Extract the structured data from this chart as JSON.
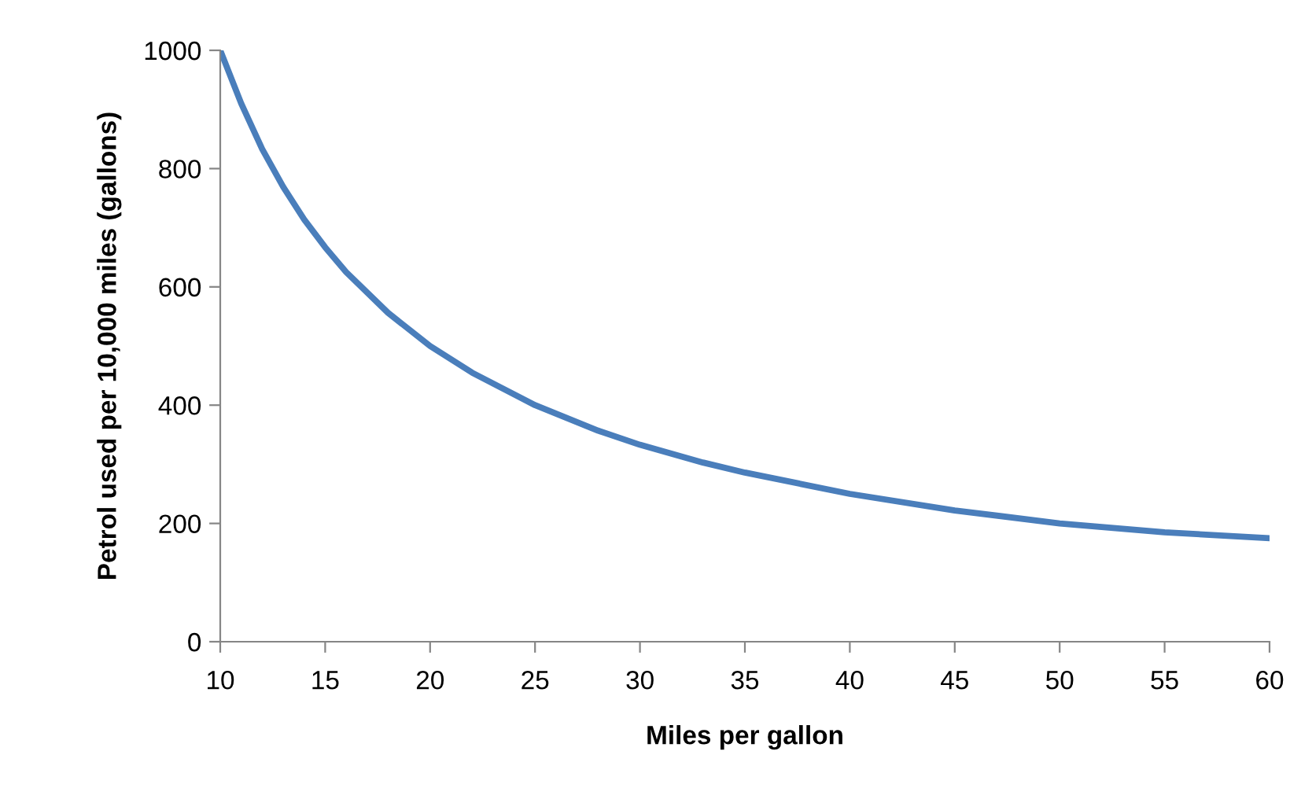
{
  "chart_data": {
    "type": "line",
    "xlabel": "Miles per gallon",
    "ylabel": "Petrol used per 10,000 miles (gallons)",
    "x": [
      10,
      11,
      12,
      13,
      14,
      15,
      16,
      18,
      20,
      22,
      25,
      28,
      30,
      33,
      35,
      40,
      45,
      50,
      55,
      60
    ],
    "series": [
      {
        "color": "#4a7ebb",
        "values": [
          1000,
          910,
          833,
          769,
          714,
          667,
          625,
          556,
          500,
          455,
          400,
          357,
          333,
          303,
          286,
          250,
          222,
          200,
          185,
          175
        ]
      }
    ],
    "xlim": [
      10,
      60
    ],
    "xticks": [
      10,
      15,
      20,
      25,
      30,
      35,
      40,
      45,
      50,
      55,
      60
    ],
    "ylim": [
      0,
      1000
    ],
    "yticks": [
      0,
      200,
      400,
      600,
      800,
      1000
    ],
    "grid": false,
    "legend": false,
    "marker": "none",
    "line_style": "solid"
  }
}
